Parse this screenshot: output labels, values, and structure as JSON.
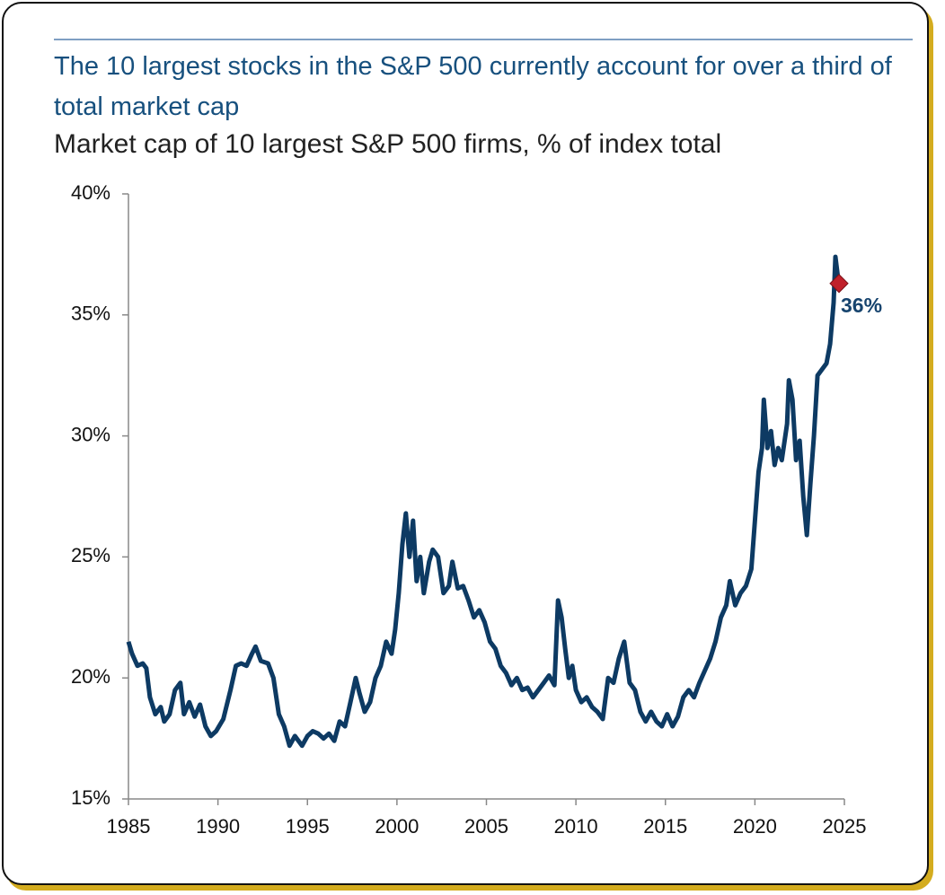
{
  "chart_data": {
    "type": "line",
    "title": "The 10 largest stocks in the S&P 500 currently account for over a third of total market cap",
    "subtitle": "Market cap of 10 largest S&P 500 firms, % of index total",
    "x": [
      1985.0,
      1985.2,
      1985.5,
      1985.8,
      1986.0,
      1986.2,
      1986.5,
      1986.8,
      1987.0,
      1987.3,
      1987.6,
      1987.9,
      1988.1,
      1988.4,
      1988.7,
      1989.0,
      1989.3,
      1989.6,
      1989.9,
      1990.3,
      1990.7,
      1991.0,
      1991.3,
      1991.6,
      1991.9,
      1992.1,
      1992.4,
      1992.8,
      1993.1,
      1993.4,
      1993.7,
      1994.0,
      1994.3,
      1994.7,
      1995.0,
      1995.3,
      1995.6,
      1995.9,
      1996.2,
      1996.5,
      1996.8,
      1997.1,
      1997.4,
      1997.7,
      1997.9,
      1998.2,
      1998.5,
      1998.8,
      1999.1,
      1999.4,
      1999.7,
      1999.9,
      2000.1,
      2000.3,
      2000.5,
      2000.7,
      2000.9,
      2001.1,
      2001.3,
      2001.5,
      2001.8,
      2002.0,
      2002.3,
      2002.6,
      2002.9,
      2003.1,
      2003.4,
      2003.7,
      2004.0,
      2004.3,
      2004.6,
      2004.9,
      2005.2,
      2005.5,
      2005.8,
      2006.1,
      2006.4,
      2006.7,
      2007.0,
      2007.3,
      2007.6,
      2007.9,
      2008.2,
      2008.5,
      2008.8,
      2009.0,
      2009.2,
      2009.4,
      2009.6,
      2009.8,
      2010.0,
      2010.3,
      2010.6,
      2010.9,
      2011.2,
      2011.5,
      2011.8,
      2012.1,
      2012.4,
      2012.7,
      2013.0,
      2013.3,
      2013.6,
      2013.9,
      2014.2,
      2014.5,
      2014.8,
      2015.1,
      2015.4,
      2015.7,
      2016.0,
      2016.3,
      2016.6,
      2016.9,
      2017.2,
      2017.5,
      2017.8,
      2018.1,
      2018.4,
      2018.6,
      2018.9,
      2019.2,
      2019.5,
      2019.8,
      2020.0,
      2020.2,
      2020.4,
      2020.5,
      2020.7,
      2020.9,
      2021.1,
      2021.3,
      2021.5,
      2021.8,
      2021.9,
      2022.1,
      2022.3,
      2022.5,
      2022.7,
      2022.9,
      2023.1,
      2023.3,
      2023.5,
      2023.8,
      2024.0,
      2024.2,
      2024.4,
      2024.5,
      2024.7
    ],
    "series": [
      {
        "color": "#0d3a63",
        "values": [
          21.5,
          21.0,
          20.5,
          20.6,
          20.4,
          19.2,
          18.5,
          18.8,
          18.2,
          18.5,
          19.5,
          19.8,
          18.5,
          19.0,
          18.4,
          18.9,
          18.0,
          17.6,
          17.8,
          18.3,
          19.5,
          20.5,
          20.6,
          20.5,
          21.0,
          21.3,
          20.7,
          20.6,
          20.0,
          18.5,
          18.0,
          17.2,
          17.6,
          17.2,
          17.6,
          17.8,
          17.7,
          17.5,
          17.7,
          17.4,
          18.2,
          18.0,
          19.0,
          20.0,
          19.4,
          18.6,
          19.0,
          20.0,
          20.5,
          21.5,
          21.0,
          22.0,
          23.5,
          25.5,
          26.8,
          25.0,
          26.5,
          24.0,
          25.0,
          23.5,
          24.8,
          25.3,
          25.0,
          23.5,
          23.8,
          24.8,
          23.7,
          23.8,
          23.2,
          22.5,
          22.8,
          22.3,
          21.5,
          21.2,
          20.5,
          20.2,
          19.7,
          20.0,
          19.5,
          19.6,
          19.2,
          19.5,
          19.8,
          20.1,
          19.7,
          23.2,
          22.5,
          21.2,
          20.0,
          20.5,
          19.5,
          19.0,
          19.2,
          18.8,
          18.6,
          18.3,
          20.0,
          19.8,
          20.8,
          21.5,
          19.8,
          19.5,
          18.6,
          18.2,
          18.6,
          18.2,
          18.0,
          18.5,
          18.0,
          18.4,
          19.2,
          19.5,
          19.2,
          19.8,
          20.3,
          20.8,
          21.5,
          22.5,
          23.0,
          24.0,
          23.0,
          23.5,
          23.8,
          24.5,
          26.5,
          28.5,
          29.5,
          31.5,
          29.5,
          30.2,
          28.8,
          29.5,
          29.0,
          30.5,
          32.3,
          31.5,
          29.0,
          29.8,
          27.5,
          25.9,
          28.0,
          30.0,
          32.5,
          32.8,
          33.0,
          33.8,
          35.5,
          37.4,
          36.2
        ]
      }
    ],
    "annotation": {
      "label": "36%",
      "x": 2024.7,
      "value": 36.3,
      "color": "#c0202a"
    },
    "xlim": [
      1985,
      2025
    ],
    "xticks": [
      1985,
      1990,
      1995,
      2000,
      2005,
      2010,
      2015,
      2020,
      2025
    ],
    "ylim": [
      15,
      40
    ],
    "yticks": [
      {
        "value": 15,
        "label": "15%"
      },
      {
        "value": 20,
        "label": "20%"
      },
      {
        "value": 25,
        "label": "25%"
      },
      {
        "value": 30,
        "label": "30%"
      },
      {
        "value": 35,
        "label": "35%"
      },
      {
        "value": 40,
        "label": "40%"
      }
    ]
  }
}
